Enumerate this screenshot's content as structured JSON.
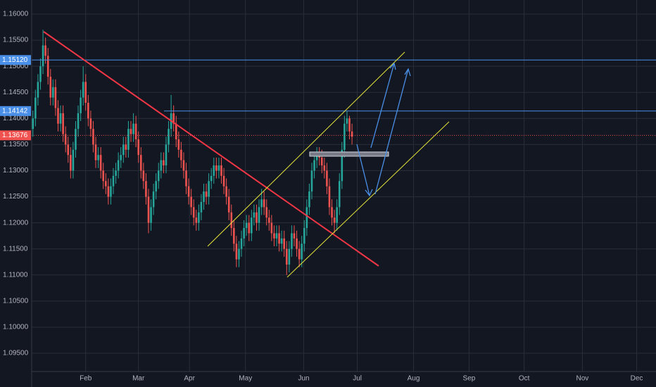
{
  "chart_data": {
    "type": "candlestick",
    "ylim": [
      1.0915,
      1.1627
    ],
    "yticks": [
      {
        "value": 1.16,
        "label": "1.16000"
      },
      {
        "value": 1.155,
        "label": "1.15500"
      },
      {
        "value": 1.15,
        "label": "1.15000"
      },
      {
        "value": 1.145,
        "label": "1.14500"
      },
      {
        "value": 1.14,
        "label": "1.14000"
      },
      {
        "value": 1.135,
        "label": "1.13500"
      },
      {
        "value": 1.13,
        "label": "1.13000"
      },
      {
        "value": 1.125,
        "label": "1.12500"
      },
      {
        "value": 1.12,
        "label": "1.12000"
      },
      {
        "value": 1.115,
        "label": "1.11500"
      },
      {
        "value": 1.11,
        "label": "1.11000"
      },
      {
        "value": 1.105,
        "label": "1.10500"
      },
      {
        "value": 1.1,
        "label": "1.10000"
      },
      {
        "value": 1.095,
        "label": "1.09500"
      }
    ],
    "xlim": [
      -0.5,
      248
    ],
    "xticks": [
      {
        "value": 21,
        "label": "Feb"
      },
      {
        "value": 42,
        "label": "Mar"
      },
      {
        "value": 62.3,
        "label": "Apr"
      },
      {
        "value": 84.6,
        "label": "May"
      },
      {
        "value": 107.8,
        "label": "Jun"
      },
      {
        "value": 129.1,
        "label": "Jul"
      },
      {
        "value": 151.5,
        "label": "Aug"
      },
      {
        "value": 173.6,
        "label": "Sep"
      },
      {
        "value": 195.5,
        "label": "Oct"
      },
      {
        "value": 218.7,
        "label": "Nov"
      },
      {
        "value": 240.3,
        "label": "Dec"
      }
    ],
    "grid": true,
    "up_color": "#26a69a",
    "down_color": "#ef5350",
    "price_lines": [
      {
        "value": 1.1512,
        "label": "1.15120",
        "color": "#4a8fe7"
      },
      {
        "value": 1.14142,
        "label": "1.14142",
        "color": "#4a8fe7"
      },
      {
        "value": 1.13676,
        "label": "1.13676",
        "color": "#f0524f"
      }
    ],
    "ohlc": [
      [
        1.138,
        1.1415,
        1.1365,
        1.14
      ],
      [
        1.14,
        1.1455,
        1.1385,
        1.144
      ],
      [
        1.144,
        1.1485,
        1.1425,
        1.147
      ],
      [
        1.147,
        1.1515,
        1.1455,
        1.15
      ],
      [
        1.15,
        1.157,
        1.1485,
        1.154
      ],
      [
        1.154,
        1.1555,
        1.1505,
        1.152
      ],
      [
        1.152,
        1.1535,
        1.1465,
        1.148
      ],
      [
        1.148,
        1.1495,
        1.1425,
        1.144
      ],
      [
        1.144,
        1.1475,
        1.1425,
        1.146
      ],
      [
        1.146,
        1.1475,
        1.1405,
        1.142
      ],
      [
        1.142,
        1.1435,
        1.1375,
        1.139
      ],
      [
        1.139,
        1.1425,
        1.1375,
        1.141
      ],
      [
        1.141,
        1.1425,
        1.1355,
        1.137
      ],
      [
        1.137,
        1.1385,
        1.1335,
        1.135
      ],
      [
        1.135,
        1.1365,
        1.1315,
        1.133
      ],
      [
        1.133,
        1.1345,
        1.1285,
        1.13
      ],
      [
        1.13,
        1.1355,
        1.1285,
        1.134
      ],
      [
        1.134,
        1.1395,
        1.1325,
        1.138
      ],
      [
        1.138,
        1.1425,
        1.1365,
        1.141
      ],
      [
        1.141,
        1.1455,
        1.1395,
        1.144
      ],
      [
        1.144,
        1.15,
        1.1425,
        1.147
      ],
      [
        1.147,
        1.1485,
        1.1415,
        1.143
      ],
      [
        1.143,
        1.1445,
        1.1385,
        1.14
      ],
      [
        1.14,
        1.1415,
        1.1365,
        1.138
      ],
      [
        1.138,
        1.1395,
        1.1335,
        1.135
      ],
      [
        1.135,
        1.1365,
        1.1305,
        1.132
      ],
      [
        1.132,
        1.1345,
        1.1305,
        1.133
      ],
      [
        1.133,
        1.1345,
        1.1285,
        1.13
      ],
      [
        1.13,
        1.1315,
        1.1265,
        1.128
      ],
      [
        1.128,
        1.1295,
        1.1255,
        1.127
      ],
      [
        1.127,
        1.1285,
        1.1235,
        1.125
      ],
      [
        1.125,
        1.1285,
        1.1235,
        1.127
      ],
      [
        1.127,
        1.1305,
        1.1255,
        1.129
      ],
      [
        1.129,
        1.1315,
        1.1275,
        1.13
      ],
      [
        1.13,
        1.1335,
        1.1285,
        1.132
      ],
      [
        1.132,
        1.1345,
        1.1305,
        1.133
      ],
      [
        1.133,
        1.1365,
        1.1315,
        1.135
      ],
      [
        1.135,
        1.1365,
        1.1325,
        1.134
      ],
      [
        1.134,
        1.1395,
        1.1325,
        1.138
      ],
      [
        1.138,
        1.1395,
        1.1355,
        1.137
      ],
      [
        1.137,
        1.141,
        1.1355,
        1.139
      ],
      [
        1.139,
        1.1405,
        1.1345,
        1.136
      ],
      [
        1.136,
        1.1375,
        1.1315,
        1.133
      ],
      [
        1.133,
        1.1345,
        1.1285,
        1.13
      ],
      [
        1.13,
        1.1315,
        1.1265,
        1.128
      ],
      [
        1.128,
        1.1295,
        1.1235,
        1.125
      ],
      [
        1.125,
        1.1265,
        1.118,
        1.12
      ],
      [
        1.12,
        1.1245,
        1.1185,
        1.123
      ],
      [
        1.123,
        1.1275,
        1.1215,
        1.126
      ],
      [
        1.126,
        1.1295,
        1.1245,
        1.128
      ],
      [
        1.128,
        1.1315,
        1.1265,
        1.13
      ],
      [
        1.13,
        1.1335,
        1.1285,
        1.132
      ],
      [
        1.132,
        1.1335,
        1.1295,
        1.131
      ],
      [
        1.131,
        1.1365,
        1.1295,
        1.135
      ],
      [
        1.135,
        1.1395,
        1.1335,
        1.138
      ],
      [
        1.138,
        1.1445,
        1.1365,
        1.141
      ],
      [
        1.141,
        1.1425,
        1.1375,
        1.139
      ],
      [
        1.139,
        1.1405,
        1.1345,
        1.136
      ],
      [
        1.136,
        1.1375,
        1.1325,
        1.134
      ],
      [
        1.134,
        1.1355,
        1.1305,
        1.132
      ],
      [
        1.132,
        1.1335,
        1.1285,
        1.13
      ],
      [
        1.13,
        1.1315,
        1.1255,
        1.127
      ],
      [
        1.127,
        1.1285,
        1.1235,
        1.125
      ],
      [
        1.125,
        1.1265,
        1.1215,
        1.123
      ],
      [
        1.123,
        1.1245,
        1.1195,
        1.121
      ],
      [
        1.121,
        1.1225,
        1.1185,
        1.12
      ],
      [
        1.12,
        1.1235,
        1.1185,
        1.122
      ],
      [
        1.122,
        1.1255,
        1.1205,
        1.124
      ],
      [
        1.124,
        1.1275,
        1.1225,
        1.126
      ],
      [
        1.126,
        1.1275,
        1.1235,
        1.125
      ],
      [
        1.125,
        1.1295,
        1.1235,
        1.128
      ],
      [
        1.128,
        1.1305,
        1.1265,
        1.129
      ],
      [
        1.129,
        1.1325,
        1.1275,
        1.131
      ],
      [
        1.131,
        1.1325,
        1.1285,
        1.13
      ],
      [
        1.13,
        1.1325,
        1.1285,
        1.131
      ],
      [
        1.131,
        1.1325,
        1.1275,
        1.129
      ],
      [
        1.129,
        1.1305,
        1.1255,
        1.127
      ],
      [
        1.127,
        1.1285,
        1.1235,
        1.125
      ],
      [
        1.125,
        1.1265,
        1.1205,
        1.122
      ],
      [
        1.122,
        1.1235,
        1.1175,
        1.119
      ],
      [
        1.119,
        1.1205,
        1.1145,
        1.116
      ],
      [
        1.116,
        1.1175,
        1.1115,
        1.113
      ],
      [
        1.113,
        1.1165,
        1.1115,
        1.115
      ],
      [
        1.115,
        1.1185,
        1.1135,
        1.117
      ],
      [
        1.117,
        1.1205,
        1.1155,
        1.119
      ],
      [
        1.119,
        1.1215,
        1.1175,
        1.12
      ],
      [
        1.12,
        1.1215,
        1.1165,
        1.118
      ],
      [
        1.118,
        1.1225,
        1.1165,
        1.121
      ],
      [
        1.121,
        1.1235,
        1.1195,
        1.122
      ],
      [
        1.122,
        1.1235,
        1.1185,
        1.12
      ],
      [
        1.12,
        1.1245,
        1.1185,
        1.123
      ],
      [
        1.123,
        1.1265,
        1.1215,
        1.1245
      ],
      [
        1.1245,
        1.126,
        1.1215,
        1.123
      ],
      [
        1.123,
        1.1245,
        1.1195,
        1.121
      ],
      [
        1.121,
        1.1225,
        1.1185,
        1.12
      ],
      [
        1.12,
        1.1215,
        1.1165,
        1.118
      ],
      [
        1.118,
        1.1195,
        1.1155,
        1.117
      ],
      [
        1.117,
        1.1195,
        1.1155,
        1.118
      ],
      [
        1.118,
        1.1195,
        1.1145,
        1.116
      ],
      [
        1.116,
        1.1185,
        1.1145,
        1.117
      ],
      [
        1.117,
        1.1185,
        1.1135,
        1.115
      ],
      [
        1.115,
        1.1165,
        1.11,
        1.112
      ],
      [
        1.112,
        1.1165,
        1.1105,
        1.115
      ],
      [
        1.115,
        1.1195,
        1.1135,
        1.118
      ],
      [
        1.118,
        1.1195,
        1.1155,
        1.117
      ],
      [
        1.117,
        1.1185,
        1.1135,
        1.115
      ],
      [
        1.115,
        1.1165,
        1.1115,
        1.113
      ],
      [
        1.113,
        1.1175,
        1.1115,
        1.116
      ],
      [
        1.116,
        1.1205,
        1.1145,
        1.119
      ],
      [
        1.119,
        1.1245,
        1.1175,
        1.123
      ],
      [
        1.123,
        1.1275,
        1.1215,
        1.126
      ],
      [
        1.126,
        1.1315,
        1.1245,
        1.13
      ],
      [
        1.13,
        1.1335,
        1.1285,
        1.132
      ],
      [
        1.132,
        1.1345,
        1.1305,
        1.133
      ],
      [
        1.133,
        1.1345,
        1.131,
        1.1325
      ],
      [
        1.1325,
        1.134,
        1.1295,
        1.131
      ],
      [
        1.131,
        1.1325,
        1.1285,
        1.13
      ],
      [
        1.13,
        1.1315,
        1.1255,
        1.127
      ],
      [
        1.127,
        1.1285,
        1.1215,
        1.123
      ],
      [
        1.123,
        1.1245,
        1.1195,
        1.121
      ],
      [
        1.121,
        1.1225,
        1.118,
        1.12
      ],
      [
        1.12,
        1.1245,
        1.1185,
        1.123
      ],
      [
        1.123,
        1.1295,
        1.1215,
        1.128
      ],
      [
        1.128,
        1.1355,
        1.1265,
        1.134
      ],
      [
        1.134,
        1.1405,
        1.1325,
        1.139
      ],
      [
        1.139,
        1.1415,
        1.1375,
        1.14
      ],
      [
        1.14,
        1.1405,
        1.136,
        1.1375
      ],
      [
        1.1375,
        1.139,
        1.135,
        1.1365
      ]
    ]
  }
}
